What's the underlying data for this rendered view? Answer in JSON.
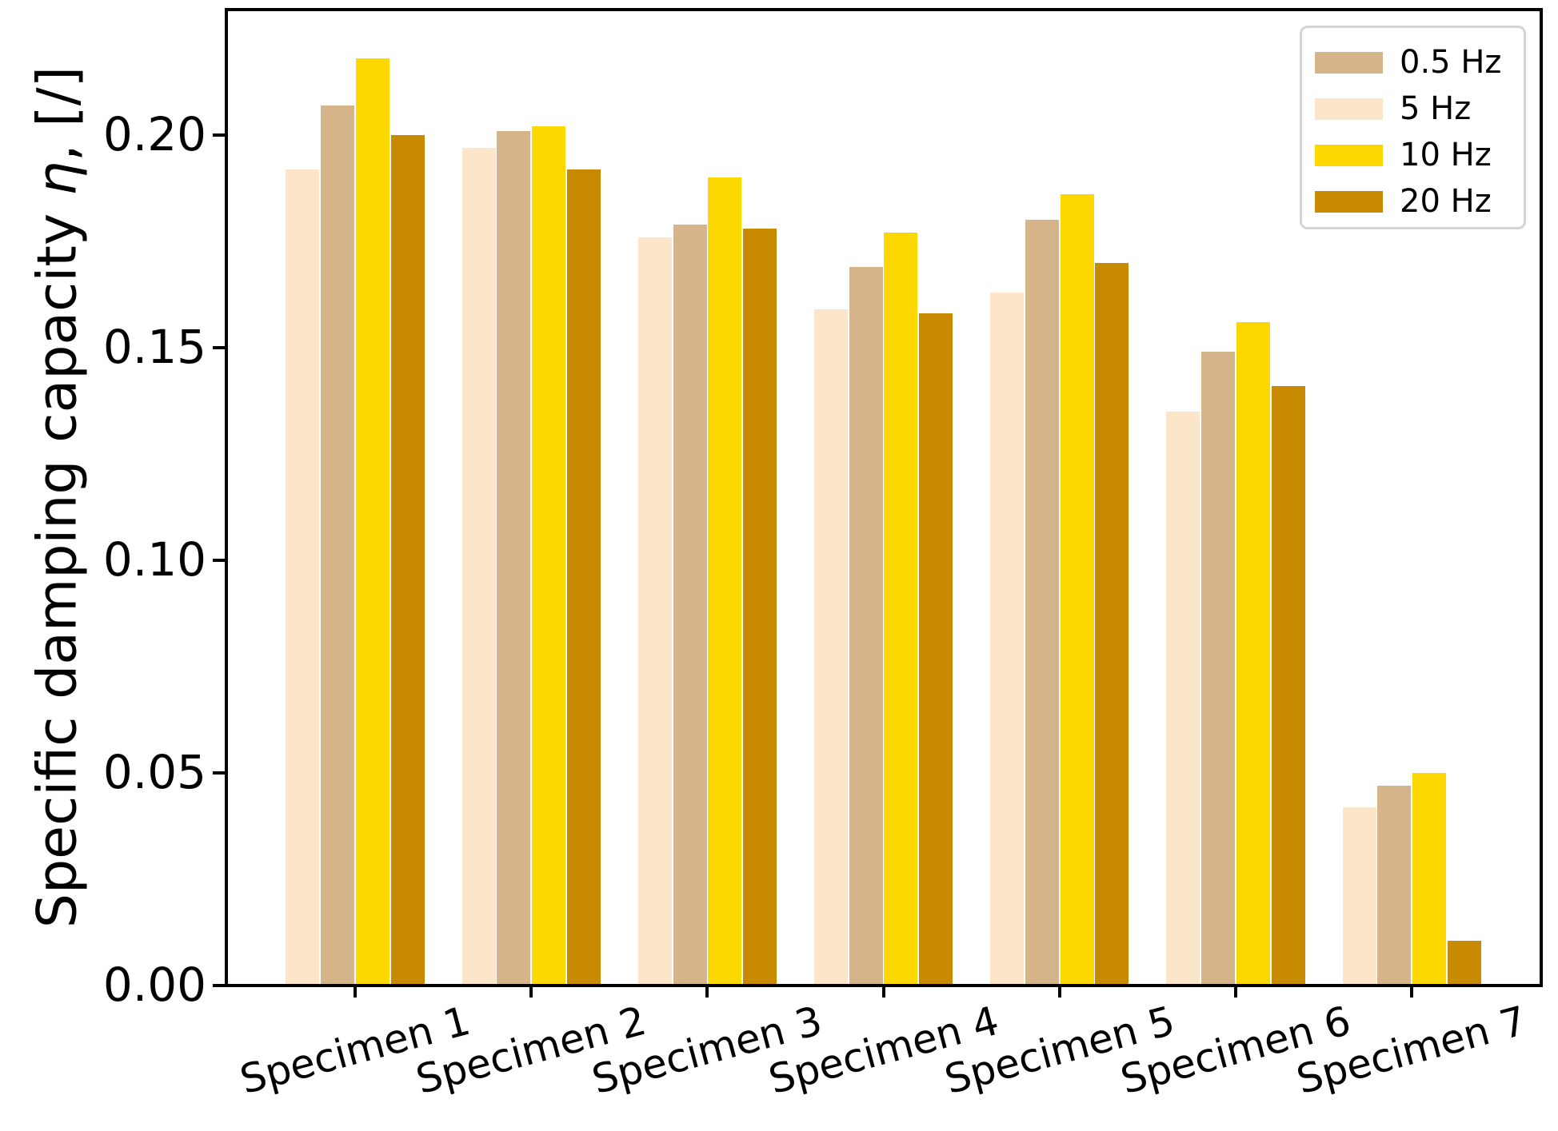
{
  "chart_data": {
    "type": "bar",
    "title": "",
    "xlabel": "",
    "ylabel": "Specific damping capacity η, [/]",
    "ylabel_parts": {
      "prefix": "Specific damping capacity ",
      "symbol": "η",
      "suffix": ", [/]"
    },
    "categories": [
      "Specimen 1",
      "Specimen 2",
      "Specimen 3",
      "Specimen 4",
      "Specimen 5",
      "Specimen 6",
      "Specimen 7"
    ],
    "series": [
      {
        "name": "5 Hz",
        "color": "#fce5c8",
        "values": [
          0.192,
          0.197,
          0.176,
          0.159,
          0.163,
          0.135,
          0.042
        ]
      },
      {
        "name": "0.5 Hz",
        "color": "#d6b48a",
        "values": [
          0.207,
          0.201,
          0.179,
          0.169,
          0.18,
          0.149,
          0.047
        ]
      },
      {
        "name": "10 Hz",
        "color": "#fdd700",
        "values": [
          0.218,
          0.202,
          0.19,
          0.177,
          0.186,
          0.156,
          0.05
        ]
      },
      {
        "name": "20 Hz",
        "color": "#c88a00",
        "values": [
          0.2,
          0.192,
          0.178,
          0.158,
          0.17,
          0.141,
          0.0105
        ]
      }
    ],
    "legend": {
      "position": "upper right",
      "entries": [
        {
          "label": "0.5 Hz",
          "color": "#d6b48a"
        },
        {
          "label": "5 Hz",
          "color": "#fce5c8"
        },
        {
          "label": "10 Hz",
          "color": "#fdd700"
        },
        {
          "label": "20 Hz",
          "color": "#c88a00"
        }
      ]
    },
    "yticks": [
      {
        "value": 0.0,
        "label": "0.00"
      },
      {
        "value": 0.05,
        "label": "0.05"
      },
      {
        "value": 0.1,
        "label": "0.10"
      },
      {
        "value": 0.15,
        "label": "0.15"
      },
      {
        "value": 0.2,
        "label": "0.20"
      }
    ],
    "ylim": [
      0,
      0.2295
    ],
    "grid": "off",
    "xtick_rotation_deg": 15
  }
}
